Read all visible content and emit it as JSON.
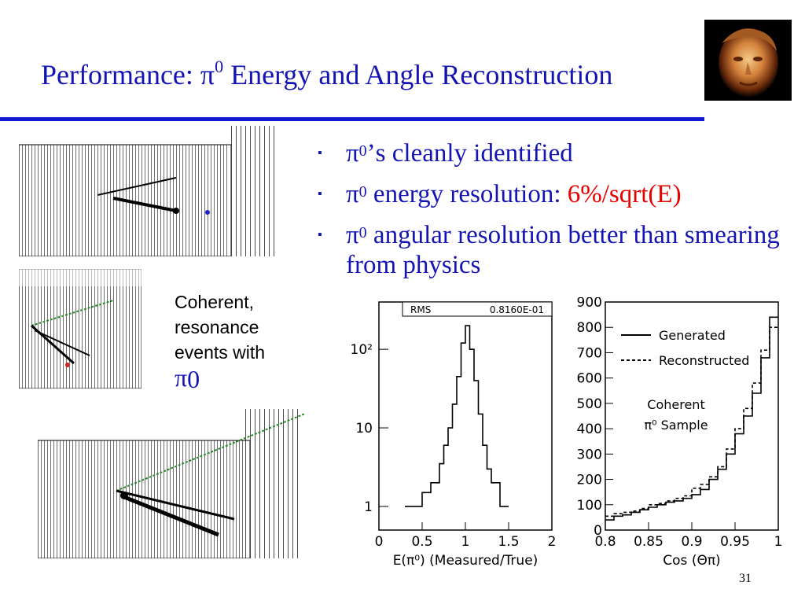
{
  "slide": {
    "title_prefix": "Performance: π",
    "title_sup": "0",
    "title_suffix": " Energy and Angle Reconstruction",
    "page_number": "31",
    "colors": {
      "title": "#1414b4",
      "rule": "#0f19d2",
      "highlight": "#e60000"
    }
  },
  "bullets": [
    {
      "pre": "π",
      "sup": "0",
      "text": "’s cleanly identified",
      "red": ""
    },
    {
      "pre": "π",
      "sup": "0",
      "text": " energy resolution: ",
      "red": "6%/sqrt(E)"
    },
    {
      "pre": "π",
      "sup": "0",
      "text": " angular resolution better than smearing from physics",
      "red": ""
    }
  ],
  "caption": {
    "text": "Coherent, resonance events with",
    "pi": "π",
    "sup": "0"
  },
  "chart_data": [
    {
      "type": "line",
      "ylog": true,
      "xlabel": "E(π⁰) (Measured/True)",
      "ylabel": "",
      "xlim": [
        0,
        2
      ],
      "ylim": [
        0.5,
        400
      ],
      "x_ticks": [
        "0",
        "0.5",
        "1",
        "1.5",
        "2"
      ],
      "y_ticks": [
        {
          "value": 1,
          "label": "1"
        },
        {
          "value": 10,
          "label": "10"
        },
        {
          "value": 100,
          "label": "10²"
        }
      ],
      "stat_label": "RMS",
      "stat_value": "0.8160E-01",
      "series": [
        {
          "x": [
            0.3,
            0.5,
            0.6,
            0.7,
            0.75,
            0.8,
            0.85,
            0.9,
            0.95,
            1.0,
            1.05,
            1.1,
            1.15,
            1.2,
            1.25,
            1.3,
            1.4,
            1.5
          ],
          "values": [
            1,
            1.5,
            2,
            3.5,
            6,
            10,
            20,
            45,
            120,
            200,
            100,
            40,
            15,
            6,
            3,
            2,
            1,
            1
          ]
        }
      ]
    },
    {
      "type": "line",
      "xlabel": "Cos (Θπ)",
      "ylabel": "",
      "xlim": [
        0.8,
        1.0
      ],
      "ylim": [
        0,
        900
      ],
      "x_ticks": [
        "0.8",
        "0.85",
        "0.9",
        "0.95",
        "1"
      ],
      "y_ticks": [
        "0",
        "100",
        "200",
        "300",
        "400",
        "500",
        "600",
        "700",
        "800",
        "900"
      ],
      "annotation": [
        "Coherent",
        "π⁰ Sample"
      ],
      "series": [
        {
          "name": "Generated",
          "style": "solid",
          "x": [
            0.8,
            0.81,
            0.82,
            0.83,
            0.84,
            0.85,
            0.86,
            0.87,
            0.88,
            0.89,
            0.9,
            0.91,
            0.92,
            0.93,
            0.94,
            0.95,
            0.96,
            0.97,
            0.98,
            0.99,
            1.0
          ],
          "values": [
            40,
            55,
            60,
            70,
            80,
            90,
            100,
            110,
            115,
            125,
            140,
            160,
            200,
            240,
            300,
            380,
            450,
            540,
            680,
            840,
            840
          ]
        },
        {
          "name": "Reconstructed",
          "style": "dashed",
          "x": [
            0.8,
            0.81,
            0.82,
            0.83,
            0.84,
            0.85,
            0.86,
            0.87,
            0.88,
            0.89,
            0.9,
            0.91,
            0.92,
            0.93,
            0.94,
            0.95,
            0.96,
            0.97,
            0.98,
            0.99,
            1.0
          ],
          "values": [
            55,
            65,
            70,
            75,
            85,
            100,
            105,
            115,
            125,
            135,
            165,
            180,
            210,
            250,
            320,
            400,
            480,
            580,
            710,
            800,
            800
          ]
        }
      ]
    }
  ]
}
